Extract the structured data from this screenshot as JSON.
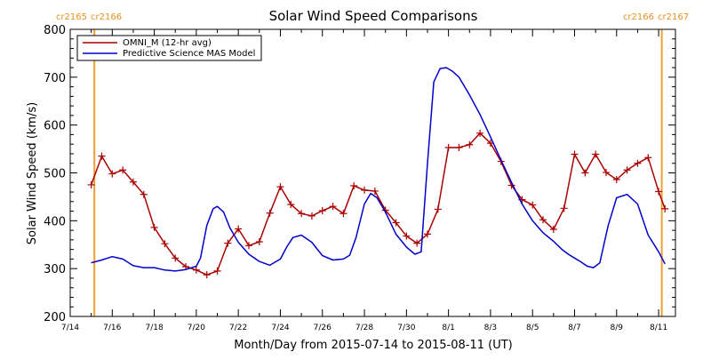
{
  "chart_data": {
    "type": "line",
    "title": "Solar Wind Speed Comparisons",
    "xlabel": "Month/Day from 2015-07-14 to 2015-08-11 (UT)",
    "ylabel": "Solar Wind Speed (km/s)",
    "ylim": [
      200,
      800
    ],
    "yticks": [
      200,
      300,
      400,
      500,
      600,
      700,
      800
    ],
    "xlim_days": [
      0,
      28.8
    ],
    "xticks": [
      {
        "day": 0,
        "label": "7/14"
      },
      {
        "day": 2,
        "label": "7/16"
      },
      {
        "day": 4,
        "label": "7/18"
      },
      {
        "day": 6,
        "label": "7/20"
      },
      {
        "day": 8,
        "label": "7/22"
      },
      {
        "day": 10,
        "label": "7/24"
      },
      {
        "day": 12,
        "label": "7/26"
      },
      {
        "day": 14,
        "label": "7/28"
      },
      {
        "day": 16,
        "label": "7/30"
      },
      {
        "day": 18,
        "label": "8/1"
      },
      {
        "day": 20,
        "label": "8/3"
      },
      {
        "day": 22,
        "label": "8/5"
      },
      {
        "day": 24,
        "label": "8/7"
      },
      {
        "day": 26,
        "label": "8/9"
      },
      {
        "day": 28,
        "label": "8/11"
      }
    ],
    "carrington_markers": [
      {
        "day": 1.15,
        "left": "cr2165",
        "right": "cr2166",
        "side": "left"
      },
      {
        "day": 28.15,
        "left": "cr2166",
        "right": "cr2167",
        "side": "right"
      }
    ],
    "legend_position": "top-left",
    "series": [
      {
        "name": "OMNI_M (12-hr avg)",
        "color": "#aa0000",
        "marker": "plus",
        "x": [
          1.0,
          1.5,
          2.0,
          2.5,
          3.0,
          3.5,
          4.0,
          4.5,
          5.0,
          5.5,
          6.0,
          6.5,
          7.0,
          7.5,
          8.0,
          8.5,
          9.0,
          9.5,
          10.0,
          10.5,
          11.0,
          11.5,
          12.0,
          12.5,
          13.0,
          13.5,
          14.0,
          14.5,
          15.0,
          15.5,
          16.0,
          16.5,
          17.0,
          17.5,
          18.0,
          18.5,
          19.0,
          19.5,
          20.0,
          20.5,
          21.0,
          21.5,
          22.0,
          22.5,
          23.0,
          23.5,
          24.0,
          24.5,
          25.0,
          25.5,
          26.0,
          26.5,
          27.0,
          27.5,
          28.0,
          28.3
        ],
        "y": [
          475,
          535,
          498,
          506,
          481,
          455,
          386,
          352,
          322,
          304,
          297,
          287,
          295,
          353,
          383,
          348,
          356,
          416,
          471,
          434,
          415,
          410,
          421,
          430,
          415,
          473,
          464,
          462,
          422,
          396,
          368,
          353,
          372,
          424,
          553,
          553,
          559,
          583,
          562,
          524,
          474,
          444,
          433,
          402,
          382,
          426,
          539,
          500,
          539,
          501,
          486,
          506,
          520,
          532,
          461,
          425
        ]
      },
      {
        "name": "Predictive Science MAS Model",
        "color": "#0000cc",
        "marker": "none",
        "x": [
          1.0,
          1.5,
          2.0,
          2.5,
          3.0,
          3.5,
          4.0,
          4.5,
          5.0,
          5.5,
          6.0,
          6.2,
          6.5,
          6.8,
          7.0,
          7.3,
          7.6,
          8.0,
          8.5,
          9.0,
          9.5,
          10.0,
          10.3,
          10.6,
          11.0,
          11.5,
          12.0,
          12.5,
          13.0,
          13.3,
          13.6,
          14.0,
          14.3,
          14.6,
          15.0,
          15.5,
          16.0,
          16.4,
          16.7,
          17.0,
          17.3,
          17.6,
          17.9,
          18.2,
          18.5,
          19.0,
          19.5,
          20.0,
          20.5,
          21.0,
          21.5,
          22.0,
          22.5,
          23.0,
          23.4,
          23.7,
          24.0,
          24.3,
          24.6,
          24.9,
          25.2,
          25.6,
          26.0,
          26.5,
          27.0,
          27.5,
          28.0,
          28.3
        ],
        "y": [
          312,
          318,
          325,
          320,
          306,
          302,
          302,
          297,
          295,
          298,
          305,
          322,
          390,
          425,
          430,
          418,
          385,
          355,
          330,
          315,
          307,
          320,
          345,
          365,
          370,
          355,
          327,
          318,
          320,
          328,
          365,
          435,
          457,
          448,
          418,
          372,
          345,
          330,
          335,
          520,
          690,
          718,
          720,
          712,
          700,
          663,
          622,
          575,
          527,
          480,
          435,
          400,
          375,
          357,
          340,
          330,
          322,
          314,
          305,
          302,
          312,
          390,
          448,
          455,
          435,
          370,
          335,
          310
        ]
      }
    ]
  }
}
